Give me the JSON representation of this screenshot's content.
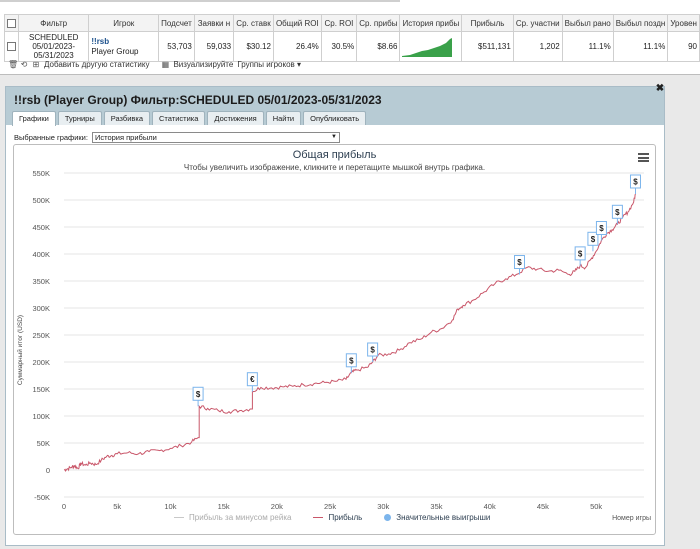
{
  "table": {
    "headers": [
      "Фильтр",
      "Игрок",
      "Подсчет",
      "Заявки н",
      "Ср. ставк",
      "Общий ROI",
      "Ср. ROI",
      "Ср. прибы",
      "История прибы",
      "Прибыль",
      "Ср. участни",
      "Выбыл рано",
      "Выбыл поздн",
      "Уровен"
    ],
    "row": {
      "filter_lines": [
        "SCHEDULED",
        "05/01/2023-",
        "05/31/2023"
      ],
      "player_name": "!!rsb",
      "player_group": "Player Group",
      "count": "53,703",
      "entries": "59,033",
      "avg_stake": "$30.12",
      "total_roi": "26.4%",
      "avg_roi": "30.5%",
      "avg_profit": "$8.66",
      "profit": "$511,131",
      "avg_field": "1,202",
      "early_out": "11.1%",
      "late_out": "11.1%",
      "level": "90"
    }
  },
  "toolbar": {
    "add_stat": "Добавить другую статистику",
    "visualize": "Визуализируйте",
    "groups": "Группы игроков"
  },
  "panel": {
    "title": "!!rsb (Player Group) Фильтр:SCHEDULED 05/01/2023-05/31/2023",
    "tabs": [
      "Графики",
      "Турниры",
      "Разбивка",
      "Статистика",
      "Достижения",
      "Найти",
      "Опубликовать"
    ],
    "selected_label": "Выбранные графики:",
    "selected_value": "История прибыли"
  },
  "colors": {
    "profit_line": "#c9576a",
    "rake_line": "#c8c8c8",
    "big_win": "#7cb5ec",
    "spark": "#3aa14a"
  },
  "chart_data": {
    "type": "line",
    "title": "Общая прибыль",
    "subtitle": "Чтобы увеличить изображение, кликните и перетащите мышкой внутрь графика.",
    "ylabel": "Суммарный итог (USD)",
    "xlabel": "Номер игры",
    "ylim": [
      -50000,
      550000
    ],
    "xlim": [
      0,
      54500
    ],
    "y_ticks": [
      "-50K",
      "0",
      "50K",
      "100K",
      "150K",
      "200K",
      "250K",
      "300K",
      "350K",
      "400K",
      "450K",
      "500K",
      "550K"
    ],
    "x_ticks": [
      "0",
      "5k",
      "10k",
      "15k",
      "20k",
      "25k",
      "30k",
      "35k",
      "40k",
      "45k",
      "50k"
    ],
    "legend": [
      "Прибыль за минусом рейка",
      "Прибыль",
      "Значительные выигрыши"
    ],
    "series": [
      {
        "name": "Прибыль",
        "points": [
          [
            0,
            0
          ],
          [
            300,
            2000
          ],
          [
            700,
            5000
          ],
          [
            1000,
            8000
          ],
          [
            1300,
            3000
          ],
          [
            1600,
            12000
          ],
          [
            2000,
            9000
          ],
          [
            2500,
            13000
          ],
          [
            3000,
            10000
          ],
          [
            3500,
            18000
          ],
          [
            4000,
            25000
          ],
          [
            4500,
            27000
          ],
          [
            5000,
            30000
          ],
          [
            6000,
            32000
          ],
          [
            7000,
            30000
          ],
          [
            8000,
            34000
          ],
          [
            9000,
            36000
          ],
          [
            10000,
            40000
          ],
          [
            11000,
            45000
          ],
          [
            12000,
            52000
          ],
          [
            12600,
            60000
          ],
          [
            12700,
            118000
          ],
          [
            13500,
            114000
          ],
          [
            14500,
            110000
          ],
          [
            15500,
            108000
          ],
          [
            16500,
            110000
          ],
          [
            17500,
            113000
          ],
          [
            17700,
            145000
          ],
          [
            18500,
            153000
          ],
          [
            19500,
            152000
          ],
          [
            20500,
            154000
          ],
          [
            21500,
            155000
          ],
          [
            22500,
            158000
          ],
          [
            23500,
            160000
          ],
          [
            24500,
            162000
          ],
          [
            25500,
            164000
          ],
          [
            26500,
            168000
          ],
          [
            27000,
            180000
          ],
          [
            27500,
            185000
          ],
          [
            28500,
            190000
          ],
          [
            29000,
            200000
          ],
          [
            29500,
            212000
          ],
          [
            30500,
            215000
          ],
          [
            31500,
            222000
          ],
          [
            32500,
            236000
          ],
          [
            33500,
            242000
          ],
          [
            34500,
            255000
          ],
          [
            35500,
            262000
          ],
          [
            36500,
            278000
          ],
          [
            37000,
            298000
          ],
          [
            37500,
            305000
          ],
          [
            38500,
            315000
          ],
          [
            39500,
            330000
          ],
          [
            40500,
            345000
          ],
          [
            41500,
            354000
          ],
          [
            42500,
            362000
          ],
          [
            43500,
            375000
          ],
          [
            44500,
            372000
          ],
          [
            45500,
            368000
          ],
          [
            46500,
            370000
          ],
          [
            47500,
            362000
          ],
          [
            48000,
            368000
          ],
          [
            48500,
            378000
          ],
          [
            49000,
            375000
          ],
          [
            49500,
            390000
          ],
          [
            50000,
            405000
          ],
          [
            50500,
            425000
          ],
          [
            51000,
            438000
          ],
          [
            51500,
            445000
          ],
          [
            52000,
            455000
          ],
          [
            52500,
            468000
          ],
          [
            53000,
            478000
          ],
          [
            53500,
            495000
          ],
          [
            53700,
            511131
          ]
        ]
      }
    ],
    "big_wins": [
      {
        "x": 12600,
        "y": 118000,
        "label": "$"
      },
      {
        "x": 17700,
        "y": 145000,
        "label": "€"
      },
      {
        "x": 27000,
        "y": 180000,
        "label": "$"
      },
      {
        "x": 29000,
        "y": 200000,
        "label": "$"
      },
      {
        "x": 42800,
        "y": 362000,
        "label": "$"
      },
      {
        "x": 48500,
        "y": 378000,
        "label": "$"
      },
      {
        "x": 49700,
        "y": 405000,
        "label": "$"
      },
      {
        "x": 50500,
        "y": 425000,
        "label": "$"
      },
      {
        "x": 52000,
        "y": 455000,
        "label": "$"
      },
      {
        "x": 53700,
        "y": 511131,
        "label": "$"
      }
    ]
  }
}
